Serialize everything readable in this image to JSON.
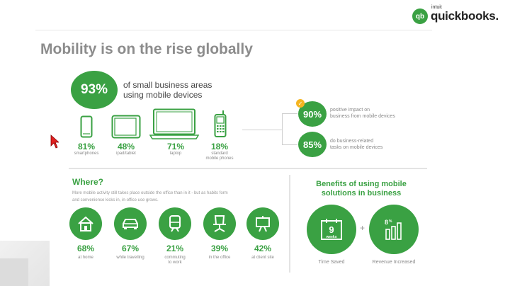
{
  "brand": {
    "mark": "qb",
    "intuit": "intuit",
    "name": "quickbooks."
  },
  "title": "Mobility is on the rise globally",
  "headline": {
    "value": "93%",
    "text_line1": "of small business areas",
    "text_line2": "using mobile devices"
  },
  "devices": [
    {
      "icon": "smartphone-icon",
      "value": "81%",
      "label": "smartphones"
    },
    {
      "icon": "tablet-icon",
      "value": "48%",
      "label": "ipad/tablet"
    },
    {
      "icon": "laptop-icon",
      "value": "71%",
      "label": "laptop"
    },
    {
      "icon": "mobile-phone-icon",
      "value": "18%",
      "label_line1": "standard",
      "label_line2": "mobile phones"
    }
  ],
  "impact": [
    {
      "value": "90%",
      "line1": "positive impact on",
      "line2": "business from mobile devices"
    },
    {
      "value": "85%",
      "line1": "do business-related",
      "line2": "tasks on mobile devices"
    }
  ],
  "where": {
    "title": "Where?",
    "desc_line1": "More mobile activity still takes place outside the office than in it - but as habits form",
    "desc_line2": "and convenience kicks in, in-office use grows.",
    "locations": [
      {
        "icon": "home-icon",
        "value": "68%",
        "label": "at home"
      },
      {
        "icon": "car-icon",
        "value": "67%",
        "label": "while travelling"
      },
      {
        "icon": "train-icon",
        "value": "21%",
        "label_line1": "commuting",
        "label_line2": "to work"
      },
      {
        "icon": "office-chair-icon",
        "value": "39%",
        "label": "in the office"
      },
      {
        "icon": "presentation-board-icon",
        "value": "42%",
        "label": "at client site"
      }
    ]
  },
  "benefits": {
    "title_line1": "Benefits of using mobile",
    "title_line2": "solutions in business",
    "items": [
      {
        "icon": "calendar-icon",
        "number": "9",
        "unit": "weeks",
        "label": "Time Saved"
      },
      {
        "icon": "bar-chart-icon",
        "number": "8",
        "unit": "%",
        "label": "Revenue Increased"
      }
    ],
    "plus": "+"
  },
  "colors": {
    "accent": "#3aa143",
    "badge": "#f5b520"
  }
}
